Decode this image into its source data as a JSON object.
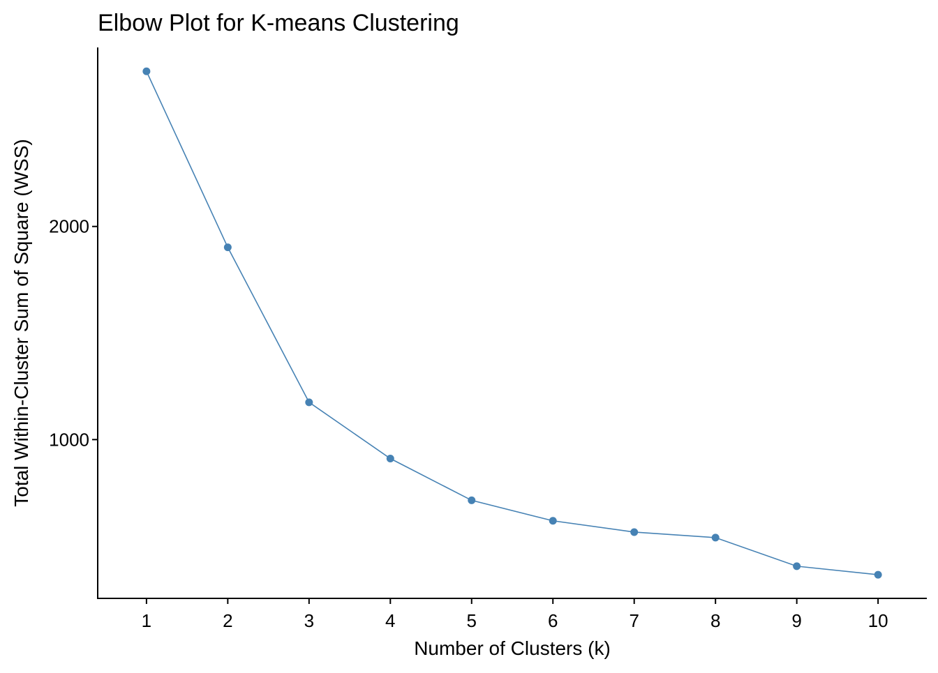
{
  "chart_data": {
    "type": "line",
    "title": "Elbow Plot for K-means Clustering",
    "xlabel": "Number of Clusters (k)",
    "ylabel": "Total Within-Cluster Sum of Square (WSS)",
    "x": [
      1,
      2,
      3,
      4,
      5,
      6,
      7,
      8,
      9,
      10
    ],
    "x_ticks": [
      "1",
      "2",
      "3",
      "4",
      "5",
      "6",
      "7",
      "8",
      "9",
      "10"
    ],
    "y_ticks": [
      1000,
      2000
    ],
    "xlim": [
      0.4,
      10.6
    ],
    "ylim": [
      255,
      2840
    ],
    "grid": false,
    "legend": "none",
    "series": [
      {
        "values": [
          2728,
          1902,
          1175,
          911,
          715,
          619,
          566,
          540,
          406,
          366
        ],
        "color": "#4682B4"
      }
    ]
  }
}
